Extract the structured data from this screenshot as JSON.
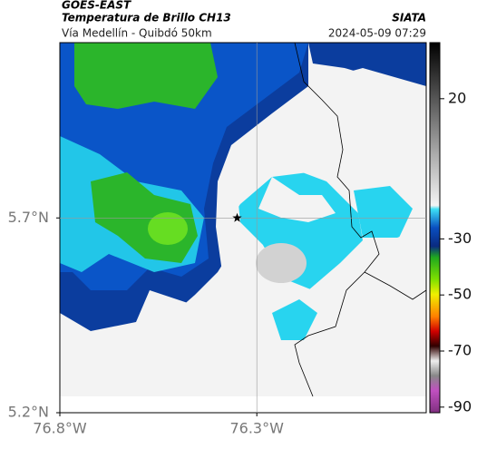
{
  "header": {
    "source": "GOES-EAST",
    "title": "Temperatura de Brillo CH13",
    "org": "SIATA",
    "subtitle": "Vía Medellín - Quibdó 50km",
    "datetime": "2024-05-09 07:29"
  },
  "map": {
    "xlim": [
      -76.8,
      -75.87
    ],
    "ylim": [
      5.2,
      6.15
    ],
    "xticks": [
      {
        "value": -76.8,
        "label": "76.8°W"
      },
      {
        "value": -76.3,
        "label": "76.3°W"
      }
    ],
    "yticks": [
      {
        "value": 5.2,
        "label": "5.2°N"
      },
      {
        "value": 5.7,
        "label": "5.7°N"
      }
    ],
    "grid": true,
    "marker": {
      "lon": -76.35,
      "lat": 5.7
    }
  },
  "colorbar": {
    "lim": [
      -92,
      40
    ],
    "ticks": [
      20,
      -30,
      -50,
      -70,
      -90
    ]
  }
}
